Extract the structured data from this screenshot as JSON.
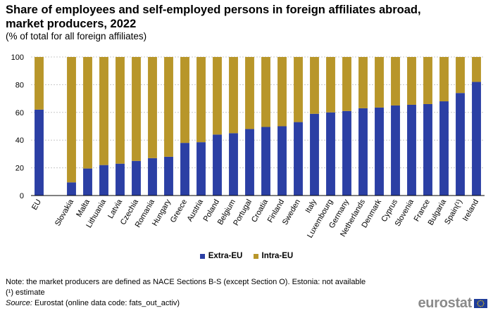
{
  "chart_data": {
    "type": "bar",
    "stacked": true,
    "title": "Share of employees and self-employed persons in foreign affiliates abroad, market producers, 2022",
    "subtitle": "(% of total for all foreign affiliates)",
    "categories": [
      "EU",
      "Slovakia",
      "Malta",
      "Lithuania",
      "Latvia",
      "Czechia",
      "Romania",
      "Hungary",
      "Greece",
      "Austria",
      "Poland",
      "Belgium",
      "Portugal",
      "Croatia",
      "Finland",
      "Sweden",
      "Italy",
      "Luxembourg",
      "Germany",
      "Netherlands",
      "Denmark",
      "Cyprus",
      "Slovenia",
      "France",
      "Bulgaria",
      "Spain(¹)",
      "Ireland"
    ],
    "gap_after_first": true,
    "series": [
      {
        "name": "Extra-EU",
        "color": "#2b3fa4",
        "values": [
          62,
          9.5,
          19.5,
          22,
          23,
          25,
          27,
          28,
          38,
          38.5,
          44,
          45,
          48,
          49.5,
          50,
          53,
          59,
          60,
          61,
          63,
          63.5,
          65,
          65.5,
          66,
          68,
          74,
          82
        ]
      },
      {
        "name": "Intra-EU",
        "color": "#b8962a",
        "values": [
          38,
          90.5,
          80.5,
          78,
          77,
          75,
          73,
          72,
          62,
          61.5,
          56,
          55,
          52,
          50.5,
          50,
          47,
          41,
          40,
          39,
          37,
          36.5,
          35,
          34.5,
          34,
          32,
          26,
          18
        ]
      }
    ],
    "ylim": [
      0,
      100
    ],
    "yticks": [
      0,
      20,
      40,
      60,
      80,
      100
    ],
    "grid": true,
    "legend_position": "bottom"
  },
  "notes": {
    "note": "Note: the market producers are defined as NACE Sections B-S (except Section O). Estonia: not available",
    "estimate": "(¹) estimate",
    "source_label": "Source:",
    "source_text": " Eurostat (online data code: fats_out_activ)"
  },
  "logo": {
    "text": "eurostat"
  }
}
